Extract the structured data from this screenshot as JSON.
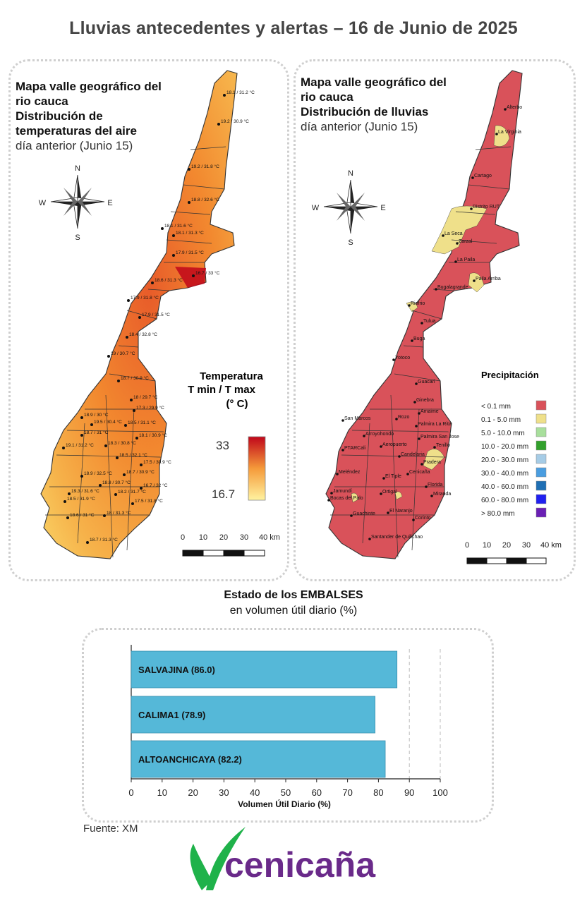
{
  "title": "Lluvias antecedentes y alertas – 16 de Junio de 2025",
  "temp_panel": {
    "title_line1": "Mapa valle geográfico del",
    "title_line2": "rio cauca",
    "title_line3": "Distribución de",
    "title_line4": "temperaturas del aire",
    "subtitle": "día anterior (Junio 15)",
    "legend_title_1": "Temperatura",
    "legend_title_2": "T min / T max",
    "legend_title_3": "(° C)",
    "legend_max": "33",
    "legend_min": "16.7",
    "colors": {
      "low": "#fff3a0",
      "mid": "#f59a3a",
      "high": "#c0061a"
    },
    "stations": [
      "18.1 / 31.2 °C",
      "19.2 / 30.9 °C",
      "19.2 / 31.8 °C",
      "18.8 / 32.6 °C",
      "18.1 / 31.6 °C",
      "18.1 / 31.3 °C",
      "17.9 / 31.5 °C",
      "16.7 / 33 °C",
      "18.6 / 31.3 °C",
      "17.9 / 31.8 °C",
      "17.9 / 31.5 °C",
      "18.4 / 32.8 °C",
      "19 / 30.7 °C",
      "18.7 / 30.9 °C",
      "18 / 29.7 °C",
      "17.3 / 29.9 °C",
      "18.9 / 30 °C",
      "19.5 / 30.4 °C",
      "18.5 / 31.1 °C",
      "18.7 / 31 °C",
      "18.3 / 30.8 °C",
      "18.1 / 30.9 °C",
      "19.1 / 31.2 °C",
      "18.5 / 32.1 °C",
      "17.5 / 30.9 °C",
      "18.9 / 32.5 °C",
      "18.8 / 30.7 °C",
      "18.7 / 30.9 °C",
      "16.7 / 32 °C",
      "19.3 / 31.6 °C",
      "18.5 / 31.9 °C",
      "18.2 / 31.7 °C",
      "17.5 / 31.8 °C",
      "18.6 / 31 °C",
      "18 / 31.3 °C",
      "18.7 / 31.3 °C"
    ]
  },
  "rain_panel": {
    "title_line1": "Mapa valle geográfico del",
    "title_line2": "rio cauca",
    "title_line3": "Distribución de lluvias",
    "subtitle": "día anterior (Junio 15)",
    "legend_title": "Precipitación",
    "legend": [
      {
        "label": "< 0.1 mm",
        "color": "#d9525a"
      },
      {
        "label": "0.1 - 5.0 mm",
        "color": "#efe08a"
      },
      {
        "label": "5.0 - 10.0 mm",
        "color": "#a8df9c"
      },
      {
        "label": "10.0 - 20.0 mm",
        "color": "#32a02c"
      },
      {
        "label": "20.0 - 30.0 mm",
        "color": "#a6cce6"
      },
      {
        "label": "30.0 - 40.0 mm",
        "color": "#4a9de0"
      },
      {
        "label": "40.0 - 60.0 mm",
        "color": "#1f6fb4"
      },
      {
        "label": "60.0 - 80.0 mm",
        "color": "#2020f0"
      },
      {
        "label": "> 80.0 mm",
        "color": "#6a1fb4"
      }
    ],
    "places": [
      "Alterbo",
      "La Virginia",
      "Cartago",
      "Distrito RUT",
      "La Seca",
      "Zarzal",
      "La Paila",
      "Paila Arriba",
      "Bugalagrande",
      "Riofrio",
      "Tulua",
      "Buga",
      "Yotoco",
      "Guacari",
      "Ginebra",
      "Amaime",
      "San Marcos",
      "Rozo",
      "Palmira La Rita",
      "Arroyohondo",
      "Palmira San Jose",
      "PTARCali",
      "Aeropuerto",
      "Tenillo",
      "Candelaria",
      "Meléndez",
      "Pradera",
      "Cenicaña",
      "El Tiple",
      "Jamundí",
      "Bocas del Palo",
      "Ortigal",
      "Florida",
      "Miranda",
      "El Naranjo",
      "Guachinte",
      "Corinto",
      "Santander de Quilichao"
    ]
  },
  "compass": {
    "n": "N",
    "s": "S",
    "e": "E",
    "w": "W"
  },
  "scale": {
    "ticks": [
      "0",
      "10",
      "20",
      "30",
      "40 km"
    ]
  },
  "embalses": {
    "heading": "Estado de los EMBALSES",
    "subheading": "en volumen útil diario (%)",
    "chart_data": {
      "type": "bar",
      "orientation": "horizontal",
      "categories": [
        "SALVAJINA (86.0)",
        "CALIMA1 (78.9)",
        "ALTOANCHICAYA (82.2)"
      ],
      "values": [
        86.0,
        78.9,
        82.2
      ],
      "xlabel": "Volumen Útil Diario (%)",
      "xlim": [
        0,
        100
      ],
      "xticks": [
        "0",
        "10",
        "20",
        "30",
        "40",
        "50",
        "60",
        "70",
        "80",
        "90",
        "100"
      ],
      "reference_lines": [
        90,
        100
      ],
      "bar_color": "#55b8d8"
    }
  },
  "source": "Fuente: XM",
  "logo_text": "cenicaña",
  "logo_colors": {
    "leaf": "#1fb24a",
    "text": "#6a2a8a"
  }
}
